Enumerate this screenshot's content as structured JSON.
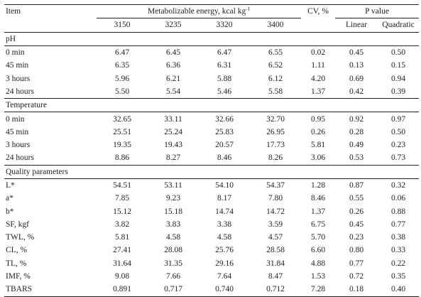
{
  "header": {
    "item": "Item",
    "me_label": "Metabolizable energy, kcal kg",
    "me_sup": "-1",
    "cv": "CV, %",
    "p_value": "P value",
    "levels": [
      "3150",
      "3235",
      "3320",
      "3400"
    ],
    "linear": "Linear",
    "quadratic": "Quadratic"
  },
  "sections": [
    {
      "title": "pH",
      "rows": [
        {
          "label": "0 min",
          "v": [
            "6.47",
            "6.45",
            "6.47",
            "6.55"
          ],
          "cv": "0.02",
          "lin": "0.45",
          "quad": "0.50"
        },
        {
          "label": "45 min",
          "v": [
            "6.35",
            "6.36",
            "6.31",
            "6.52"
          ],
          "cv": "1.11",
          "lin": "0.13",
          "quad": "0.15"
        },
        {
          "label": "3 hours",
          "v": [
            "5.96",
            "6.21",
            "5.88",
            "6.12"
          ],
          "cv": "4.20",
          "lin": "0.69",
          "quad": "0.94"
        },
        {
          "label": "24 hours",
          "v": [
            "5.50",
            "5.54",
            "5.46",
            "5.58"
          ],
          "cv": "1.37",
          "lin": "0.42",
          "quad": "0.39"
        }
      ]
    },
    {
      "title": "Temperature",
      "rows": [
        {
          "label": "0 min",
          "v": [
            "32.65",
            "33.11",
            "32.66",
            "32.70"
          ],
          "cv": "0.95",
          "lin": "0.92",
          "quad": "0.97"
        },
        {
          "label": "45 min",
          "v": [
            "25.51",
            "25.24",
            "25.83",
            "26.95"
          ],
          "cv": "0.26",
          "lin": "0.28",
          "quad": "0.50"
        },
        {
          "label": "3 hours",
          "v": [
            "19.35",
            "19.43",
            "20.57",
            "17.73"
          ],
          "cv": "5.81",
          "lin": "0.49",
          "quad": "0.23"
        },
        {
          "label": "24 hours",
          "v": [
            "8.86",
            "8.27",
            "8.46",
            "8.26"
          ],
          "cv": "3.06",
          "lin": "0.53",
          "quad": "0.73"
        }
      ]
    },
    {
      "title": "Quality parameters",
      "rows": [
        {
          "label": "L*",
          "v": [
            "54.51",
            "53.11",
            "54.10",
            "54.37"
          ],
          "cv": "1.28",
          "lin": "0.87",
          "quad": "0.32"
        },
        {
          "label": "a*",
          "v": [
            "7.85",
            "9.23",
            "8.17",
            "7.80"
          ],
          "cv": "8.46",
          "lin": "0.55",
          "quad": "0.06"
        },
        {
          "label": "b*",
          "v": [
            "15.12",
            "15.18",
            "14.74",
            "14.72"
          ],
          "cv": "1.37",
          "lin": "0.26",
          "quad": "0.88"
        },
        {
          "label": "SF, kgf",
          "v": [
            "3.82",
            "3.83",
            "3.38",
            "3.59"
          ],
          "cv": "6.75",
          "lin": "0.45",
          "quad": "0.77"
        },
        {
          "label": "TWL, %",
          "v": [
            "5.81",
            "4.58",
            "4.58",
            "4.57"
          ],
          "cv": "5.70",
          "lin": "0.23",
          "quad": "0.38"
        },
        {
          "label": "CL, %",
          "v": [
            "27.41",
            "28.08",
            "25.76",
            "28.58"
          ],
          "cv": "6.60",
          "lin": "0.80",
          "quad": "0.33"
        },
        {
          "label": "TL, %",
          "v": [
            "31.64",
            "31.35",
            "29.16",
            "31.84"
          ],
          "cv": "4.88",
          "lin": "0.77",
          "quad": "0.22"
        },
        {
          "label": "IMF, %",
          "v": [
            "9.08",
            "7.66",
            "7.64",
            "8.47"
          ],
          "cv": "1.53",
          "lin": "0.72",
          "quad": "0.35"
        },
        {
          "label": "TBARS",
          "v": [
            "0.891",
            "0.717",
            "0.740",
            "0.712"
          ],
          "cv": "7.28",
          "lin": "0.18",
          "quad": "0.40"
        }
      ]
    }
  ]
}
